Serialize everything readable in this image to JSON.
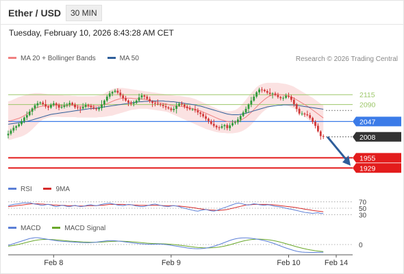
{
  "header": {
    "title": "Ether / USD",
    "timeframe_button": "30 MIN",
    "timestamp": "Tuesday, February 10, 2026 8:43:28 AM CET"
  },
  "credit": "Research © 2026 Trading Central",
  "colors": {
    "up_candle": "#2f9a3a",
    "down_candle": "#d13a3a",
    "bollinger_band": "#fad6d6",
    "ma20": "#f08080",
    "ma50": "#2f5f9a",
    "current_line": "#3b7be8",
    "support_line": "#e31c1c",
    "resistance_line": "#9dc76a",
    "rsi": "#5b7fd6",
    "rsi_ma": "#d62a2a",
    "macd": "#5b7fd6",
    "macd_signal": "#6aa82a",
    "arrow": "#2e5d9a"
  },
  "chart_data": [
    {
      "type": "candlestick",
      "name": "price",
      "legend": [
        {
          "label": "MA 20 + Bollinger Bands",
          "color": "#f08080"
        },
        {
          "label": "MA 50",
          "color": "#2f5f9a"
        }
      ],
      "x_labels": [
        "Feb 8",
        "Feb 9",
        "Feb 10",
        "Feb 14"
      ],
      "ylim": [
        1900,
        2190
      ],
      "close": [
        2016,
        2024,
        2031,
        2035,
        2040,
        2048,
        2057,
        2063,
        2072,
        2080,
        2088,
        2093,
        2095,
        2091,
        2085,
        2082,
        2089,
        2093,
        2089,
        2082,
        2084,
        2088,
        2090,
        2094,
        2090,
        2083,
        2082,
        2080,
        2084,
        2089,
        2087,
        2083,
        2080,
        2078,
        2081,
        2090,
        2100,
        2110,
        2118,
        2122,
        2125,
        2120,
        2113,
        2106,
        2100,
        2095,
        2092,
        2094,
        2100,
        2108,
        2113,
        2110,
        2104,
        2098,
        2094,
        2092,
        2091,
        2089,
        2086,
        2083,
        2080,
        2076,
        2079,
        2087,
        2092,
        2090,
        2085,
        2081,
        2078,
        2078,
        2075,
        2070,
        2066,
        2060,
        2054,
        2048,
        2041,
        2036,
        2032,
        2031,
        2035,
        2038,
        2030,
        2037,
        2043,
        2045,
        2052,
        2061,
        2070,
        2079,
        2090,
        2100,
        2110,
        2121,
        2128,
        2127,
        2124,
        2120,
        2117,
        2118,
        2114,
        2109,
        2106,
        2107,
        2112,
        2110,
        2102,
        2091,
        2079,
        2067,
        2067,
        2065,
        2063,
        2056,
        2046,
        2036,
        2022,
        2010,
        2008
      ],
      "ma20": [
        2048,
        2049,
        2051,
        2053,
        2055,
        2058,
        2062,
        2066,
        2071,
        2076,
        2080,
        2083,
        2085,
        2086,
        2086,
        2087,
        2087,
        2088,
        2088,
        2088,
        2087,
        2087,
        2087,
        2088,
        2088,
        2087,
        2086,
        2086,
        2086,
        2086,
        2086,
        2086,
        2086,
        2086,
        2087,
        2088,
        2090,
        2092,
        2095,
        2098,
        2101,
        2103,
        2105,
        2106,
        2106,
        2106,
        2106,
        2105,
        2105,
        2105,
        2104,
        2103,
        2102,
        2100,
        2099,
        2097,
        2095,
        2094,
        2093,
        2092,
        2090,
        2088,
        2087,
        2086,
        2086,
        2085,
        2084,
        2082,
        2081,
        2080,
        2078,
        2076,
        2074,
        2071,
        2068,
        2065,
        2062,
        2059,
        2056,
        2053,
        2051,
        2049,
        2047,
        2046,
        2046,
        2046,
        2047,
        2050,
        2054,
        2058,
        2064,
        2070,
        2077,
        2084,
        2091,
        2097,
        2103,
        2108,
        2112,
        2114,
        2115,
        2116,
        2115,
        2114,
        2113,
        2111,
        2109,
        2106,
        2102,
        2098,
        2094,
        2090,
        2086,
        2081,
        2076,
        2071,
        2066,
        2061,
        2056
      ],
      "bb_upper": [
        2098,
        2100,
        2103,
        2106,
        2109,
        2111,
        2113,
        2115,
        2117,
        2118,
        2119,
        2119,
        2119,
        2118,
        2117,
        2116,
        2116,
        2115,
        2115,
        2114,
        2114,
        2113,
        2113,
        2113,
        2112,
        2112,
        2111,
        2111,
        2111,
        2111,
        2111,
        2111,
        2111,
        2112,
        2113,
        2115,
        2118,
        2122,
        2126,
        2129,
        2131,
        2132,
        2132,
        2132,
        2131,
        2130,
        2129,
        2128,
        2127,
        2126,
        2125,
        2124,
        2123,
        2122,
        2121,
        2120,
        2119,
        2118,
        2117,
        2116,
        2115,
        2114,
        2113,
        2112,
        2112,
        2111,
        2110,
        2109,
        2108,
        2106,
        2104,
        2101,
        2098,
        2095,
        2092,
        2089,
        2086,
        2083,
        2080,
        2077,
        2075,
        2074,
        2073,
        2073,
        2074,
        2076,
        2080,
        2086,
        2094,
        2102,
        2111,
        2119,
        2127,
        2134,
        2139,
        2142,
        2144,
        2145,
        2145,
        2145,
        2145,
        2145,
        2144,
        2143,
        2142,
        2140,
        2138,
        2135,
        2131,
        2127,
        2123,
        2119,
        2115,
        2111,
        2107,
        2102,
        2097,
        2092,
        2088
      ],
      "bb_lower": [
        2000,
        2001,
        2003,
        2005,
        2007,
        2009,
        2012,
        2016,
        2021,
        2027,
        2034,
        2041,
        2047,
        2052,
        2055,
        2057,
        2058,
        2059,
        2059,
        2059,
        2058,
        2058,
        2058,
        2058,
        2058,
        2058,
        2057,
        2057,
        2057,
        2057,
        2057,
        2057,
        2057,
        2057,
        2058,
        2058,
        2059,
        2060,
        2061,
        2062,
        2064,
        2066,
        2068,
        2070,
        2072,
        2074,
        2076,
        2077,
        2078,
        2079,
        2079,
        2079,
        2079,
        2078,
        2077,
        2076,
        2075,
        2074,
        2073,
        2072,
        2070,
        2067,
        2064,
        2061,
        2058,
        2055,
        2052,
        2049,
        2046,
        2043,
        2040,
        2037,
        2034,
        2031,
        2028,
        2026,
        2024,
        2022,
        2020,
        2019,
        2018,
        2018,
        2017,
        2017,
        2017,
        2018,
        2019,
        2021,
        2024,
        2028,
        2033,
        2039,
        2046,
        2054,
        2062,
        2069,
        2075,
        2080,
        2084,
        2087,
        2089,
        2090,
        2090,
        2089,
        2088,
        2086,
        2083,
        2080,
        2076,
        2071,
        2066,
        2060,
        2054,
        2048,
        2042,
        2036,
        2030,
        2025,
        2020
      ],
      "ma50": [
        2040,
        2041,
        2042,
        2043,
        2044,
        2045,
        2046,
        2047,
        2049,
        2051,
        2053,
        2055,
        2057,
        2059,
        2061,
        2063,
        2065,
        2066,
        2067,
        2068,
        2069,
        2070,
        2071,
        2072,
        2073,
        2074,
        2075,
        2076,
        2077,
        2078,
        2079,
        2080,
        2080,
        2081,
        2082,
        2083,
        2084,
        2085,
        2086,
        2087,
        2088,
        2089,
        2090,
        2091,
        2092,
        2093,
        2094,
        2095,
        2096,
        2097,
        2097,
        2098,
        2098,
        2099,
        2099,
        2099,
        2099,
        2099,
        2099,
        2098,
        2098,
        2097,
        2097,
        2096,
        2095,
        2094,
        2093,
        2092,
        2091,
        2090,
        2089,
        2087,
        2086,
        2084,
        2082,
        2080,
        2078,
        2076,
        2074,
        2072,
        2070,
        2068,
        2066,
        2065,
        2064,
        2064,
        2064,
        2065,
        2066,
        2068,
        2070,
        2072,
        2074,
        2076,
        2078,
        2080,
        2082,
        2084,
        2085,
        2086,
        2087,
        2088,
        2088,
        2089,
        2089,
        2089,
        2089,
        2089,
        2088,
        2087,
        2086,
        2085,
        2084,
        2083,
        2082,
        2081,
        2080,
        2079,
        2078
      ],
      "levels": [
        {
          "label": "2115",
          "value": 2115,
          "kind": "resistance"
        },
        {
          "label": "2090",
          "value": 2090,
          "kind": "resistance"
        },
        {
          "label": "2047",
          "value": 2047,
          "kind": "pivot"
        },
        {
          "label": "2008",
          "value": 2008,
          "kind": "last"
        },
        {
          "label": "1955",
          "value": 1955,
          "kind": "support"
        },
        {
          "label": "1929",
          "value": 1929,
          "kind": "support"
        }
      ]
    },
    {
      "type": "line",
      "name": "RSI",
      "legend": [
        {
          "label": "RSI",
          "color": "#5b7fd6"
        },
        {
          "label": "9MA",
          "color": "#d62a2a"
        }
      ],
      "ylim": [
        20,
        80
      ],
      "y_ticks": [
        "70",
        "50",
        "30"
      ],
      "y_tick_values": [
        70,
        50,
        30
      ],
      "rsi": [
        58,
        60,
        62,
        63,
        64,
        66,
        67,
        66,
        67,
        65,
        63,
        62,
        60,
        59,
        61,
        62,
        60,
        57,
        55,
        57,
        59,
        58,
        56,
        55,
        57,
        59,
        57,
        55,
        56,
        58,
        60,
        61,
        59,
        58,
        60,
        62,
        64,
        65,
        66,
        64,
        62,
        60,
        59,
        58,
        60,
        62,
        61,
        59,
        57,
        56,
        55,
        56,
        58,
        60,
        62,
        63,
        61,
        59,
        57,
        56,
        55,
        57,
        58,
        57,
        55,
        52,
        50,
        48,
        46,
        44,
        42,
        41,
        43,
        45,
        46,
        44,
        42,
        41,
        43,
        46,
        49,
        52,
        55,
        58,
        61,
        64,
        66,
        65,
        63,
        61,
        60,
        62,
        64,
        63,
        61,
        60,
        59,
        61,
        60,
        58,
        56,
        55,
        54,
        52,
        50,
        48,
        47,
        45,
        43,
        41,
        39,
        37,
        36,
        35,
        34,
        35,
        36,
        34,
        33
      ],
      "ma": [
        55,
        56,
        57,
        58,
        59,
        60,
        61,
        62,
        63,
        64,
        64,
        64,
        63,
        63,
        62,
        62,
        61,
        60,
        60,
        59,
        59,
        59,
        58,
        58,
        58,
        58,
        57,
        57,
        57,
        57,
        58,
        58,
        58,
        58,
        59,
        59,
        60,
        61,
        62,
        62,
        62,
        62,
        62,
        62,
        61,
        61,
        61,
        60,
        60,
        59,
        59,
        59,
        59,
        59,
        59,
        59,
        59,
        59,
        58,
        58,
        58,
        58,
        58,
        57,
        57,
        56,
        55,
        54,
        53,
        52,
        51,
        49,
        48,
        47,
        46,
        45,
        44,
        44,
        43,
        43,
        44,
        45,
        46,
        48,
        50,
        52,
        54,
        56,
        58,
        60,
        61,
        61,
        62,
        62,
        62,
        62,
        62,
        62,
        61,
        61,
        60,
        59,
        58,
        57,
        56,
        55,
        54,
        53,
        52,
        50,
        49,
        47,
        46,
        45,
        43,
        42,
        41,
        40,
        39
      ]
    },
    {
      "type": "line",
      "name": "MACD",
      "legend": [
        {
          "label": "MACD",
          "color": "#5b7fd6"
        },
        {
          "label": "MACD Signal",
          "color": "#6aa82a"
        }
      ],
      "ylim": [
        -12,
        12
      ],
      "y_ticks": [
        "0"
      ],
      "y_tick_values": [
        0
      ],
      "macd": [
        -1,
        0,
        1,
        2,
        3,
        4,
        5,
        6,
        7,
        7.5,
        8,
        8,
        7.5,
        7,
        6.5,
        6,
        5.5,
        5,
        4.5,
        4,
        3.8,
        3.6,
        3.4,
        3.2,
        3,
        2.8,
        2.6,
        2.4,
        2.3,
        2.2,
        2.2,
        2.3,
        2.5,
        2.8,
        3.2,
        3.6,
        4,
        4.4,
        4.6,
        4.6,
        4.4,
        4.1,
        3.8,
        3.4,
        3,
        2.6,
        2.2,
        1.8,
        1.4,
        1,
        0.8,
        0.6,
        0.5,
        0.4,
        0.4,
        0.5,
        0.6,
        0.5,
        0.3,
        0,
        -0.4,
        -0.9,
        -1.4,
        -1.9,
        -2.4,
        -2.9,
        -3.4,
        -3.9,
        -4.3,
        -4.6,
        -4.8,
        -4.9,
        -4.8,
        -4.6,
        -4.2,
        -3.6,
        -2.9,
        -2,
        -1,
        0,
        1.2,
        2.4,
        3.6,
        4.8,
        5.8,
        6.6,
        7.2,
        7.6,
        7.8,
        7.8,
        7.6,
        7.3,
        6.9,
        6.4,
        5.8,
        5.2,
        4.5,
        3.7,
        2.8,
        1.8,
        0.7,
        -0.5,
        -1.7,
        -2.9,
        -4,
        -5,
        -6,
        -7,
        -7.8,
        -8.4,
        -8.8,
        -9,
        -9.1,
        -9.2,
        -9.2,
        -9.2,
        -9.1,
        -9,
        -9
      ],
      "signal": [
        -2,
        -1.5,
        -1,
        -0.4,
        0.3,
        1,
        1.8,
        2.6,
        3.4,
        4.1,
        4.8,
        5.3,
        5.7,
        5.9,
        6,
        6,
        5.9,
        5.7,
        5.5,
        5.2,
        4.9,
        4.6,
        4.3,
        4,
        3.8,
        3.6,
        3.4,
        3.2,
        3,
        2.9,
        2.8,
        2.7,
        2.7,
        2.7,
        2.8,
        2.9,
        3.1,
        3.3,
        3.5,
        3.7,
        3.8,
        3.9,
        3.9,
        3.8,
        3.7,
        3.5,
        3.3,
        3.1,
        2.8,
        2.5,
        2.2,
        1.9,
        1.6,
        1.4,
        1.2,
        1.1,
        1,
        0.9,
        0.8,
        0.7,
        0.5,
        0.3,
        0,
        -0.3,
        -0.7,
        -1.1,
        -1.5,
        -1.9,
        -2.3,
        -2.7,
        -3.1,
        -3.4,
        -3.6,
        -3.8,
        -3.9,
        -3.9,
        -3.8,
        -3.6,
        -3.3,
        -2.9,
        -2.4,
        -1.8,
        -1.1,
        -0.3,
        0.6,
        1.5,
        2.4,
        3.3,
        4.1,
        4.8,
        5.4,
        5.8,
        6.1,
        6.3,
        6.3,
        6.2,
        6,
        5.7,
        5.3,
        4.8,
        4.2,
        3.5,
        2.7,
        1.9,
        1,
        0.1,
        -0.8,
        -1.7,
        -2.6,
        -3.4,
        -4.2,
        -4.9,
        -5.6,
        -6.2,
        -6.7,
        -7.2,
        -7.6,
        -7.9,
        -8.2
      ]
    }
  ]
}
